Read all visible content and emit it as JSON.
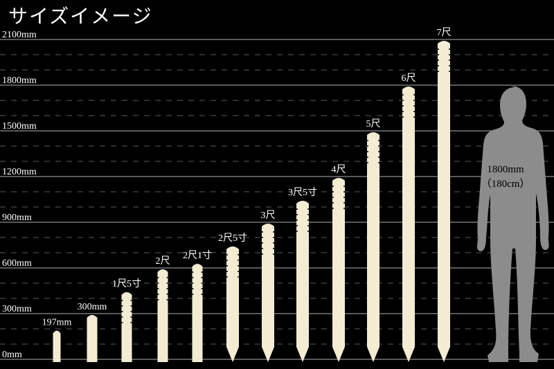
{
  "title": "サイズイメージ",
  "chart_data": {
    "type": "bar",
    "title": "サイズイメージ",
    "unit": "mm",
    "ylim": [
      0,
      2100
    ],
    "yticks": [
      0,
      300,
      600,
      900,
      1200,
      1500,
      1800,
      2100
    ],
    "ytick_labels": [
      "0mm",
      "300mm",
      "600mm",
      "900mm",
      "1200mm",
      "1500mm",
      "1800mm",
      "2100mm"
    ],
    "minor_grid_step": 100,
    "grid": true,
    "categories": [
      "197mm",
      "300mm",
      "1尺5寸",
      "2尺",
      "2尺1寸",
      "2尺5寸",
      "3尺",
      "3尺5寸",
      "4尺",
      "5尺",
      "6尺",
      "7尺"
    ],
    "values": [
      197,
      300,
      450,
      600,
      636,
      750,
      900,
      1050,
      1200,
      1500,
      1800,
      2100
    ],
    "bar_color": "#f3ecd2",
    "reference": {
      "label_line1": "1800mm",
      "label_line2": "（180cm）",
      "value": 1800,
      "color": "#8c8c8c"
    }
  }
}
